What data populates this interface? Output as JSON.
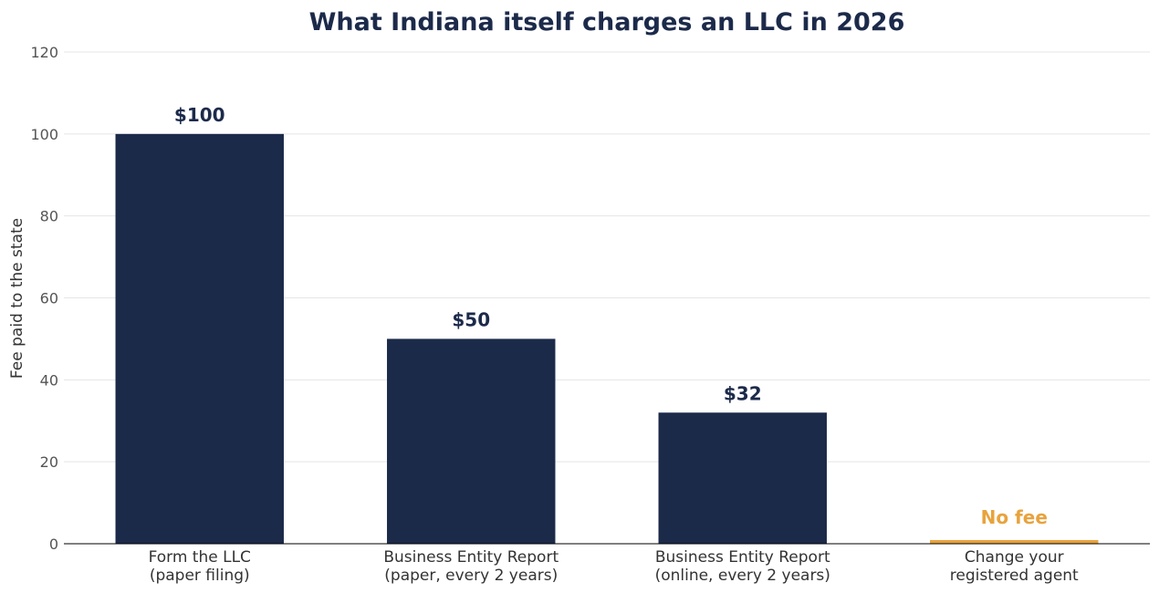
{
  "chart_data": {
    "type": "bar",
    "title": "What Indiana itself charges an LLC in 2026",
    "xlabel": "",
    "ylabel": "Fee paid to the state",
    "ylim": [
      0,
      120
    ],
    "yticks": [
      "0",
      "20",
      "40",
      "60",
      "80",
      "100",
      "120"
    ],
    "grid": true,
    "categories": [
      [
        "Form the LLC",
        "(paper filing)"
      ],
      [
        "Business Entity Report",
        "(paper, every 2 years)"
      ],
      [
        "Business Entity Report",
        "(online, every 2 years)"
      ],
      [
        "Change your",
        "registered agent"
      ]
    ],
    "values": [
      100,
      50,
      32,
      0
    ],
    "data_labels": [
      "$100",
      "$50",
      "$32",
      "No fee"
    ],
    "colors": {
      "bar": "#1c2a4a",
      "zero_bar": "#e8a33d",
      "title": "#1c2a4a",
      "grid": "#e5e5e5",
      "axis": "#000000"
    }
  }
}
